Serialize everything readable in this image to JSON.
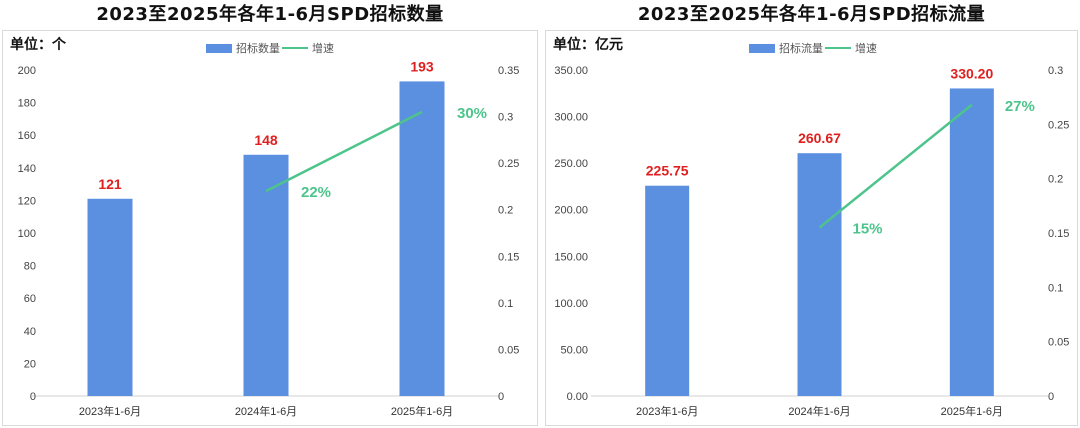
{
  "colors": {
    "bar": "#5b8fe0",
    "line": "#4dc48b",
    "bar_label": "#e02020",
    "growth_label": "#4dc48b"
  },
  "chart_data": [
    {
      "type": "bar",
      "title": "2023至2025年各年1-6月SPD招标数量",
      "unit_label": "单位：个",
      "categories": [
        "2023年1-6月",
        "2024年1-6月",
        "2025年1-6月"
      ],
      "series": [
        {
          "name": "招标数量",
          "type": "bar",
          "axis": "left",
          "values": [
            121,
            148,
            193
          ],
          "labels": [
            "121",
            "148",
            "193"
          ]
        },
        {
          "name": "增速",
          "type": "line",
          "axis": "right",
          "values": [
            null,
            0.22,
            0.305
          ],
          "labels": [
            "",
            "22%",
            "30%"
          ]
        }
      ],
      "ylim": [
        0,
        200
      ],
      "yticks": [
        "0",
        "20",
        "40",
        "60",
        "80",
        "100",
        "120",
        "140",
        "160",
        "180",
        "200"
      ],
      "y2lim": [
        0,
        0.35
      ],
      "y2ticks": [
        "0",
        "0.05",
        "0.1",
        "0.15",
        "0.2",
        "0.25",
        "0.3",
        "0.35"
      ],
      "legend_position": "top-center",
      "grid": false
    },
    {
      "type": "bar",
      "title": "2023至2025年各年1-6月SPD招标流量",
      "unit_label": "单位：亿元",
      "categories": [
        "2023年1-6月",
        "2024年1-6月",
        "2025年1-6月"
      ],
      "series": [
        {
          "name": "招标流量",
          "type": "bar",
          "axis": "left",
          "values": [
            225.75,
            260.67,
            330.2
          ],
          "labels": [
            "225.75",
            "260.67",
            "330.20"
          ]
        },
        {
          "name": "增速",
          "type": "line",
          "axis": "right",
          "values": [
            null,
            0.155,
            0.268
          ],
          "labels": [
            "",
            "15%",
            "27%"
          ]
        }
      ],
      "ylim": [
        0,
        350
      ],
      "yticks": [
        "0.00",
        "50.00",
        "100.00",
        "150.00",
        "200.00",
        "250.00",
        "300.00",
        "350.00"
      ],
      "y2lim": [
        0,
        0.3
      ],
      "y2ticks": [
        "0",
        "0.05",
        "0.1",
        "0.15",
        "0.2",
        "0.25",
        "0.3"
      ],
      "legend_position": "top-center",
      "grid": false
    }
  ]
}
